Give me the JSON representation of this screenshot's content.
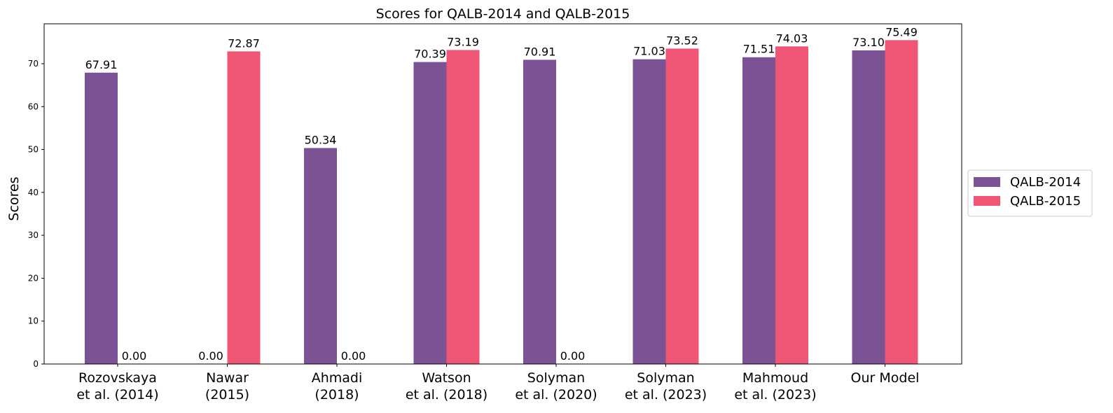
{
  "chart_data": {
    "type": "bar",
    "title": "Scores for QALB-2014 and QALB-2015",
    "xlabel": "",
    "ylabel": "Scores",
    "ylim": [
      0,
      79.3
    ],
    "yticks": [
      0,
      10,
      20,
      30,
      40,
      50,
      60,
      70
    ],
    "grid": false,
    "legend_position": "right",
    "categories": [
      [
        "Rozovskaya",
        "et al. (2014)"
      ],
      [
        "Nawar",
        "(2015)"
      ],
      [
        "Ahmadi",
        "(2018)"
      ],
      [
        "Watson",
        "et al. (2018)"
      ],
      [
        "Solyman",
        "et al. (2020)"
      ],
      [
        "Solyman",
        "et al. (2023)"
      ],
      [
        "Mahmoud",
        "et al. (2023)"
      ],
      [
        "Our Model"
      ]
    ],
    "series": [
      {
        "name": "QALB-2014",
        "color": "#7b5294",
        "values": [
          67.91,
          0.0,
          50.34,
          70.39,
          70.91,
          71.03,
          71.51,
          73.1
        ],
        "labels": [
          "67.91",
          "0.00",
          "50.34",
          "70.39",
          "70.91",
          "71.03",
          "71.51",
          "73.10"
        ]
      },
      {
        "name": "QALB-2015",
        "color": "#ef5675",
        "values": [
          0.0,
          72.87,
          0.0,
          73.19,
          0.0,
          73.52,
          74.03,
          75.49
        ],
        "labels": [
          "0.00",
          "72.87",
          "0.00",
          "73.19",
          "0.00",
          "73.52",
          "74.03",
          "75.49"
        ]
      }
    ]
  }
}
